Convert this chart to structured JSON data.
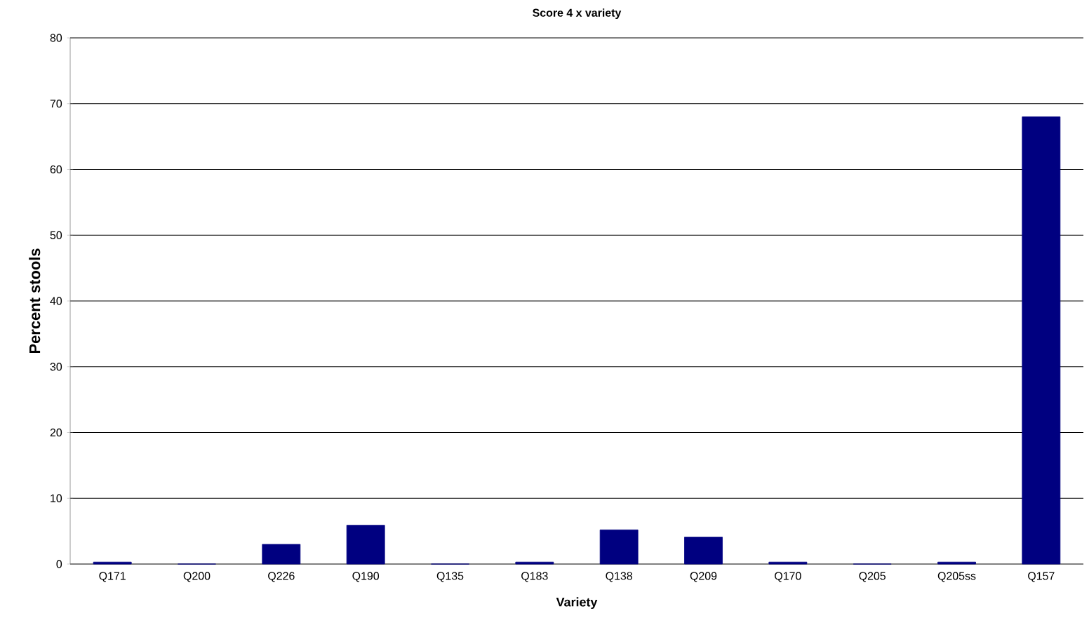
{
  "chart_data": {
    "type": "bar",
    "title": "Score 4 x variety",
    "xlabel": "Variety",
    "ylabel": "Percent stools",
    "categories": [
      "Q171",
      "Q200",
      "Q226",
      "Q190",
      "Q135",
      "Q183",
      "Q138",
      "Q209",
      "Q170",
      "Q205",
      "Q205ss",
      "Q157"
    ],
    "values": [
      0.3,
      0,
      3.0,
      5.9,
      0,
      0.3,
      5.2,
      4.1,
      0.3,
      0,
      0.3,
      68
    ],
    "color": "#000080",
    "ylim": [
      0,
      80
    ],
    "yticks": [
      0,
      10,
      20,
      30,
      40,
      50,
      60,
      70,
      80
    ],
    "grid": "y"
  }
}
